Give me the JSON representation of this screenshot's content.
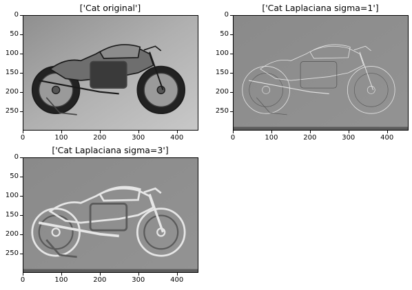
{
  "panels": [
    {
      "title": "['Cat original']",
      "style": "original",
      "xticks": [
        0,
        100,
        200,
        300,
        400
      ],
      "yticks": [
        0,
        50,
        100,
        150,
        200,
        250
      ]
    },
    {
      "title": "['Cat Laplaciana sigma=1']",
      "style": "laplace1",
      "xticks": [
        0,
        100,
        200,
        300,
        400
      ],
      "yticks": [
        0,
        50,
        100,
        150,
        200,
        250
      ]
    },
    {
      "title": "['Cat Laplaciana sigma=3']",
      "style": "laplace3",
      "xticks": [
        0,
        100,
        200,
        300,
        400
      ],
      "yticks": [
        0,
        50,
        100,
        150,
        200,
        250
      ]
    }
  ],
  "image_extent": {
    "width": 456,
    "height": 300
  },
  "colors": {
    "original_bg": "#b0b0b0",
    "laplace_bg": "#8a8a8a",
    "laplace_edge_light": "#e6e6e6",
    "laplace_edge_dark": "#5a5a5a"
  }
}
